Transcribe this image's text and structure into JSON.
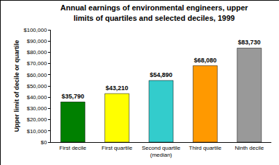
{
  "chart_data": {
    "type": "bar",
    "title": "Annual earnings of environmental engineers, upper limits of quartiles and selected deciles, 1999",
    "y_label": "Upper limit of decile or quartile",
    "categories": [
      "First decile",
      "First quartile",
      "Second quartile (median)",
      "Third quartile",
      "Ninth decile"
    ],
    "values": [
      35790,
      43210,
      54890,
      68080,
      83730
    ],
    "value_labels": [
      "$35,790",
      "$43,210",
      "$54,890",
      "$68,080",
      "$83,730"
    ],
    "colors": [
      "#008000",
      "#ffff00",
      "#33cccc",
      "#ff9900",
      "#999999"
    ],
    "data_labels": true,
    "grid": false,
    "ylim": [
      0,
      100000
    ],
    "yticks": [
      {
        "value": 0,
        "label": "$0"
      },
      {
        "value": 10000,
        "label": "$10,000"
      },
      {
        "value": 20000,
        "label": "$20,000"
      },
      {
        "value": 30000,
        "label": "$30,000"
      },
      {
        "value": 40000,
        "label": "$40,000"
      },
      {
        "value": 50000,
        "label": "$50,000"
      },
      {
        "value": 60000,
        "label": "$60,000"
      },
      {
        "value": 70000,
        "label": "$70,000"
      },
      {
        "value": 80000,
        "label": "$80,000"
      },
      {
        "value": 90000,
        "label": "$90,000"
      },
      {
        "value": 100000,
        "label": "$100,000"
      }
    ]
  }
}
